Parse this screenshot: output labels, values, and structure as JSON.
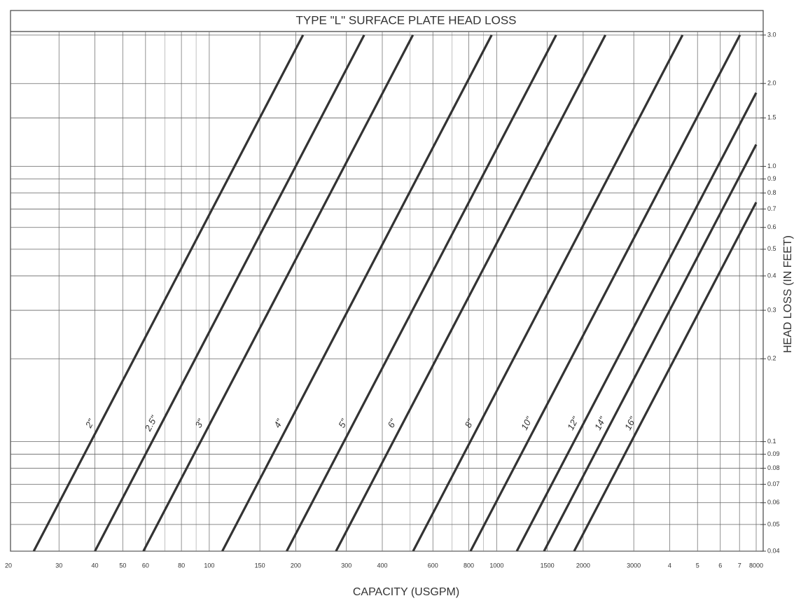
{
  "chart_data": {
    "type": "line",
    "title": "TYPE \"L\" SURFACE PLATE HEAD LOSS",
    "x_label": "CAPACITY (USGPM)",
    "y_label": "HEAD LOSS (IN FEET)",
    "x_scale": "log",
    "y_scale": "log",
    "grid": true,
    "xlim": [
      20,
      8000
    ],
    "ylim": [
      0.04,
      3.0
    ],
    "xticks": [
      20,
      30,
      40,
      50,
      60,
      80,
      100,
      150,
      200,
      300,
      400,
      600,
      800,
      1000,
      1500,
      2000,
      3000,
      {
        "value": 4000,
        "label": "4"
      },
      {
        "value": 5000,
        "label": "5"
      },
      {
        "value": 6000,
        "label": "6"
      },
      {
        "value": 7000,
        "label": "7"
      },
      8000
    ],
    "xminor_ticks": [
      70,
      90,
      500,
      700,
      900
    ],
    "yticks": [
      0.04,
      0.05,
      0.06,
      0.07,
      0.08,
      0.09,
      0.1,
      0.2,
      0.3,
      0.4,
      0.5,
      0.6,
      0.7,
      0.8,
      0.9,
      {
        "value": 1,
        "label": "1.0"
      },
      1.5,
      {
        "value": 2,
        "label": "2.0"
      },
      {
        "value": 3,
        "label": "3.0"
      }
    ],
    "series": [
      {
        "name": "2\"",
        "color": "#333333",
        "x": [
          24.5,
          212
        ],
        "values": [
          0.04,
          3.0
        ]
      },
      {
        "name": "2.5\"",
        "color": "#333333",
        "x": [
          40,
          346
        ],
        "values": [
          0.04,
          3.0
        ]
      },
      {
        "name": "3\"",
        "color": "#333333",
        "x": [
          59,
          511
        ],
        "values": [
          0.04,
          3.0
        ]
      },
      {
        "name": "4\"",
        "color": "#333333",
        "x": [
          111,
          961
        ],
        "values": [
          0.04,
          3.0
        ]
      },
      {
        "name": "5\"",
        "color": "#333333",
        "x": [
          186,
          1611
        ],
        "values": [
          0.04,
          3.0
        ]
      },
      {
        "name": "6\"",
        "color": "#333333",
        "x": [
          276,
          2390
        ],
        "values": [
          0.04,
          3.0
        ]
      },
      {
        "name": "8\"",
        "color": "#333333",
        "x": [
          512,
          4434
        ],
        "values": [
          0.04,
          3.0
        ]
      },
      {
        "name": "10\"",
        "color": "#333333",
        "x": [
          811,
          7023
        ],
        "values": [
          0.04,
          3.0
        ]
      },
      {
        "name": "12\"",
        "color": "#333333",
        "x": [
          1175,
          8000
        ],
        "values": [
          0.04,
          1.85
        ]
      },
      {
        "name": "14\"",
        "color": "#333333",
        "x": [
          1462,
          8000
        ],
        "values": [
          0.04,
          1.2
        ]
      },
      {
        "name": "16\"",
        "color": "#333333",
        "x": [
          1860,
          8000
        ],
        "values": [
          0.04,
          0.74
        ]
      }
    ]
  }
}
